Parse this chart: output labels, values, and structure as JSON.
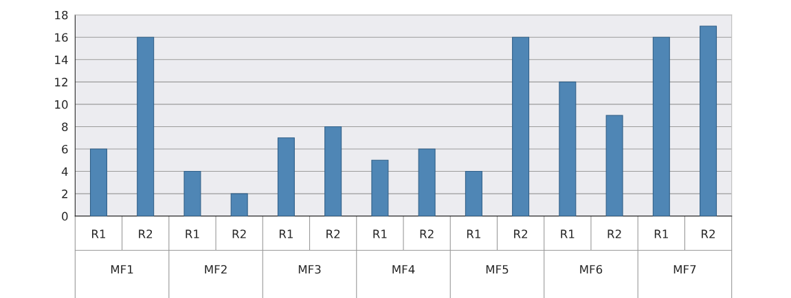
{
  "chart_data": {
    "type": "bar",
    "categories": [
      "R1",
      "R2",
      "R1",
      "R2",
      "R1",
      "R2",
      "R1",
      "R2",
      "R1",
      "R2",
      "R1",
      "R2",
      "R1",
      "R2"
    ],
    "values": [
      6,
      16,
      4,
      2,
      7,
      8,
      5,
      6,
      4,
      16,
      12,
      9,
      16,
      17
    ],
    "color": "#4f86b5",
    "ylim": [
      0,
      18
    ],
    "yticks": [
      0,
      2,
      4,
      6,
      8,
      10,
      12,
      14,
      16,
      18
    ],
    "grid": "y",
    "annotations": [
      "MF1",
      "MF2",
      "MF3",
      "MF4",
      "MF5",
      "MF6",
      "MF7"
    ]
  }
}
